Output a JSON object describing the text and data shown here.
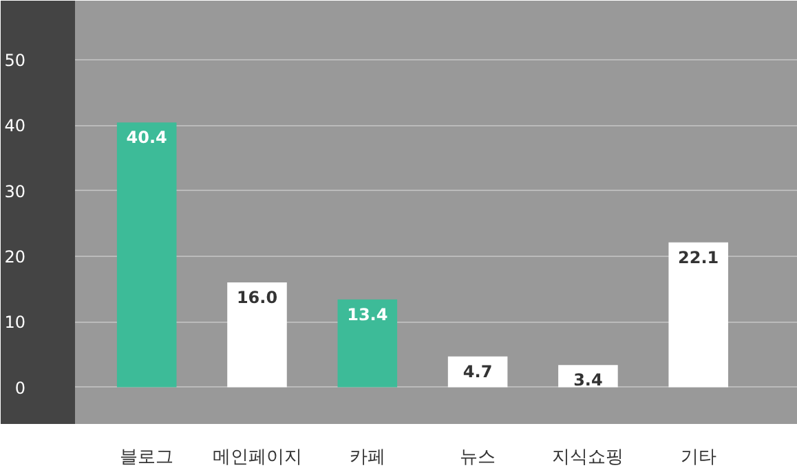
{
  "chart_data": {
    "type": "bar",
    "categories": [
      "블로그",
      "메인페이지",
      "카페",
      "뉴스",
      "지식쇼핑",
      "기타"
    ],
    "values": [
      40.4,
      16.0,
      13.4,
      4.7,
      3.4,
      22.1
    ],
    "colors": [
      "#3dbb98",
      "#ffffff",
      "#3dbb98",
      "#ffffff",
      "#ffffff",
      "#ffffff"
    ],
    "value_labels": [
      "40.4",
      "16.0",
      "13.4",
      "4.7",
      "3.4",
      "22.1"
    ],
    "ylim": [
      -5.6,
      59
    ],
    "yticks": [
      0,
      10,
      20,
      30,
      40,
      50
    ],
    "grid": "y"
  }
}
